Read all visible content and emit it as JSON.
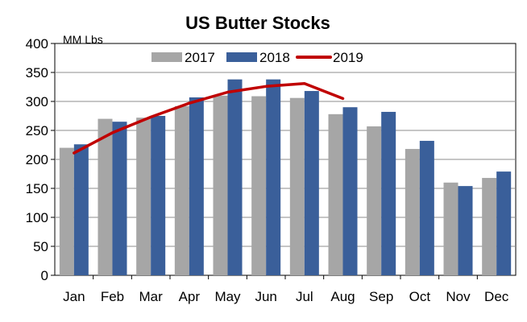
{
  "chart_data": {
    "type": "bar",
    "title": "US Butter Stocks",
    "ylabel": "MM Lbs",
    "xlabel": "",
    "ylim": [
      0,
      400
    ],
    "yticks": [
      0,
      50,
      100,
      150,
      200,
      250,
      300,
      350,
      400
    ],
    "grid": true,
    "legend_position": "top-center",
    "categories": [
      "Jan",
      "Feb",
      "Mar",
      "Apr",
      "May",
      "Jun",
      "Jul",
      "Aug",
      "Sep",
      "Oct",
      "Nov",
      "Dec"
    ],
    "series": [
      {
        "name": "2017",
        "type": "bar",
        "color": "#a6a6a6",
        "values": [
          220,
          270,
          272,
          292,
          310,
          309,
          306,
          278,
          257,
          218,
          160,
          168
        ]
      },
      {
        "name": "2018",
        "type": "bar",
        "color": "#3a5f9a",
        "values": [
          226,
          265,
          275,
          307,
          338,
          338,
          318,
          290,
          282,
          232,
          154,
          179
        ]
      },
      {
        "name": "2019",
        "type": "line",
        "color": "#c00000",
        "values": [
          211,
          246,
          273,
          297,
          316,
          326,
          331,
          305,
          null,
          null,
          null,
          null
        ]
      }
    ]
  }
}
